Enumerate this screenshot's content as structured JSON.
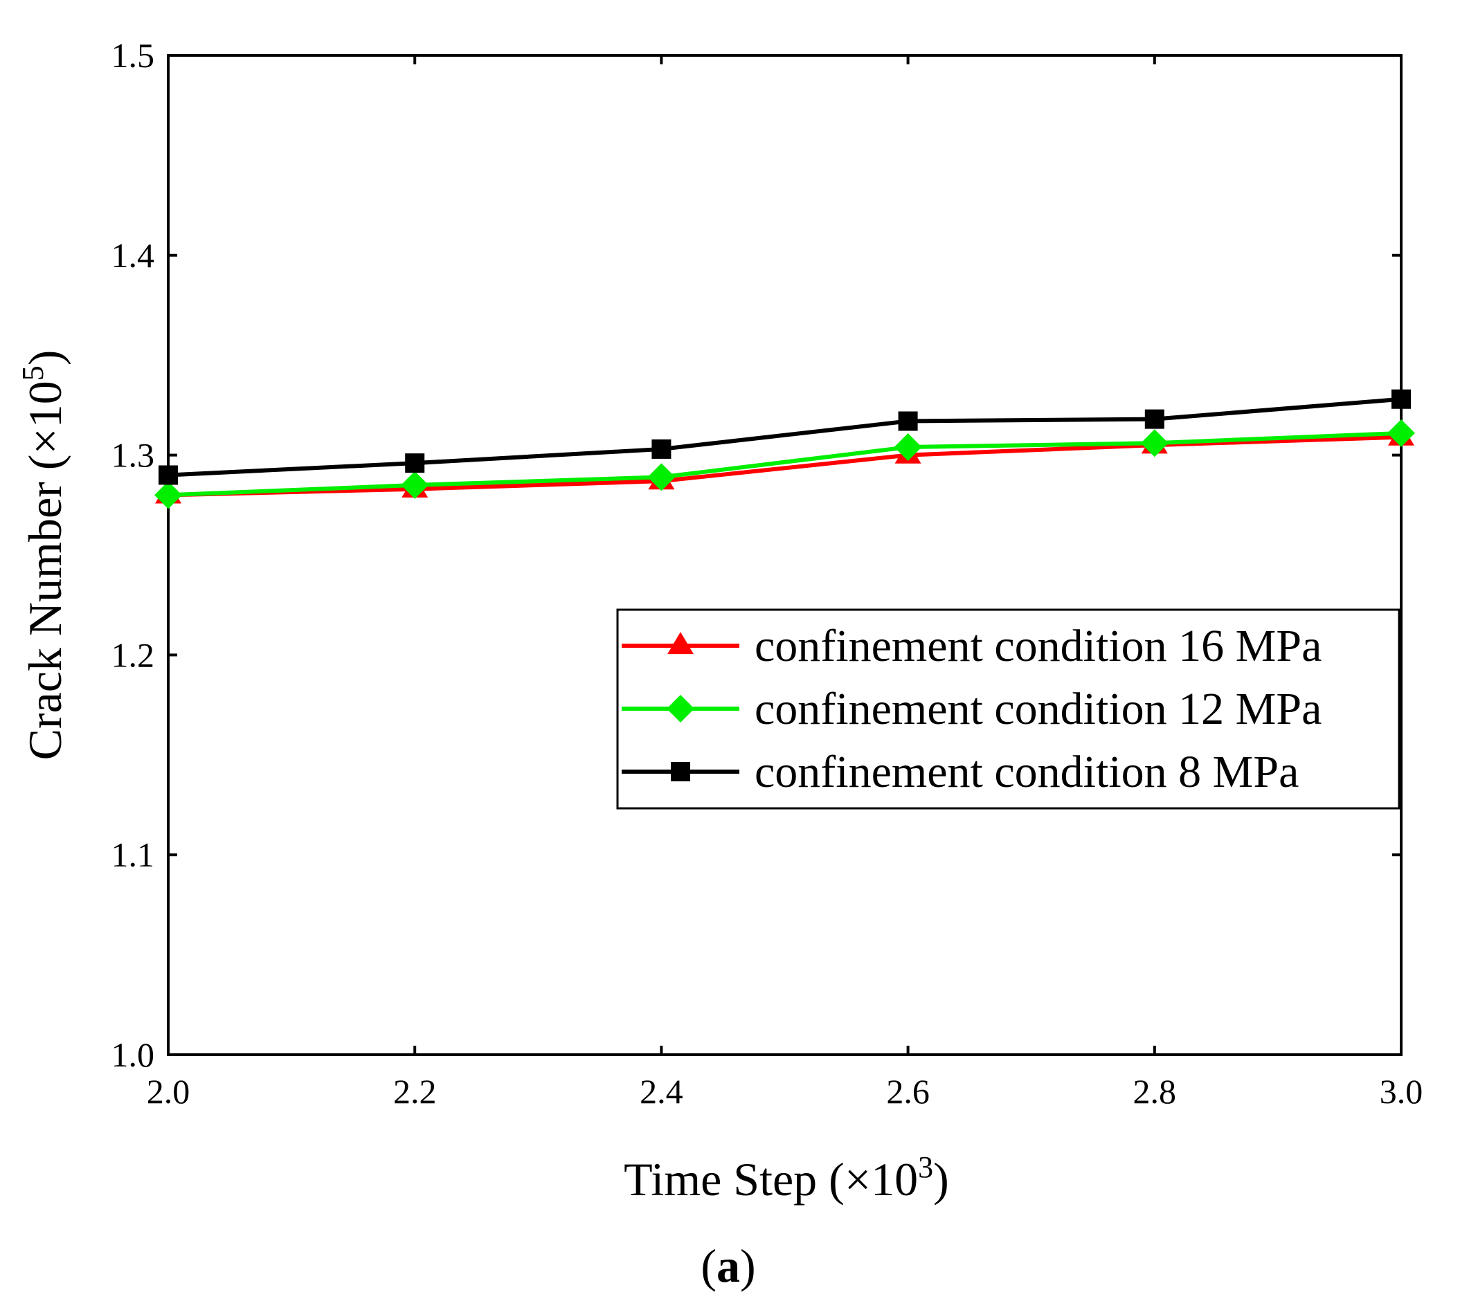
{
  "chart_data": {
    "type": "line",
    "xlabel_main": "Time Step (×10",
    "xlabel_exp": "3",
    "xlabel_close": ")",
    "ylabel_main": "Crack Number (×10",
    "ylabel_exp": "5",
    "ylabel_close": ")",
    "panel_label_open": "(",
    "panel_label_letter": "a",
    "panel_label_close": ")",
    "xlim": [
      2.0,
      3.0
    ],
    "ylim": [
      1.0,
      1.5
    ],
    "xticks": [
      "2.0",
      "2.2",
      "2.4",
      "2.6",
      "2.8",
      "3.0"
    ],
    "yticks": [
      "1.0",
      "1.1",
      "1.2",
      "1.3",
      "1.4",
      "1.5"
    ],
    "x": [
      2.0,
      2.2,
      2.4,
      2.6,
      2.8,
      3.0
    ],
    "legend_position": "center-right",
    "series": [
      {
        "name": "confinement condition 16 MPa",
        "color": "#ff0000",
        "marker": "triangle",
        "values": [
          1.28,
          1.283,
          1.287,
          1.3,
          1.305,
          1.309
        ]
      },
      {
        "name": "confinement condition 12 MPa",
        "color": "#00ee00",
        "marker": "diamond",
        "values": [
          1.28,
          1.285,
          1.289,
          1.304,
          1.306,
          1.311
        ]
      },
      {
        "name": "confinement condition 8 MPa",
        "color": "#000000",
        "marker": "square",
        "values": [
          1.29,
          1.296,
          1.303,
          1.317,
          1.318,
          1.328
        ]
      }
    ]
  }
}
